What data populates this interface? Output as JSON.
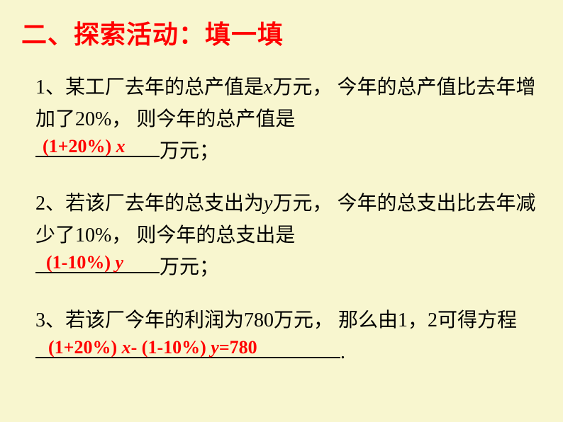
{
  "title": "二、探索活动：填一填",
  "questions": {
    "q1": {
      "prefix": "1、某工厂去年的总产值是",
      "var1": "x",
      "mid1": "万元， 今年的总产值比去年增加了20%， 则今年的总产值是",
      "answer_pre": "(1+20%) ",
      "answer_var": "x",
      "suffix": "万元；"
    },
    "q2": {
      "prefix": "2、若该厂去年的总支出为",
      "var1": "y",
      "mid1": "万元， 今年的总支出比去年减少了10%， 则今年的总支出是",
      "answer_pre": "(1-10%) ",
      "answer_var": "y",
      "suffix": "万元；"
    },
    "q3": {
      "prefix": "3、若该厂今年的利润为780万元， 那么由1，2可得方程",
      "answer_p1": "(1+20%) ",
      "answer_v1": "x",
      "answer_p2": "- (1-10%) ",
      "answer_v2": "y",
      "answer_p3": "=780",
      "suffix": "."
    }
  },
  "colors": {
    "background": "#f8f6cf",
    "title": "#ff0000",
    "text": "#000000",
    "answer": "#ff0000"
  }
}
